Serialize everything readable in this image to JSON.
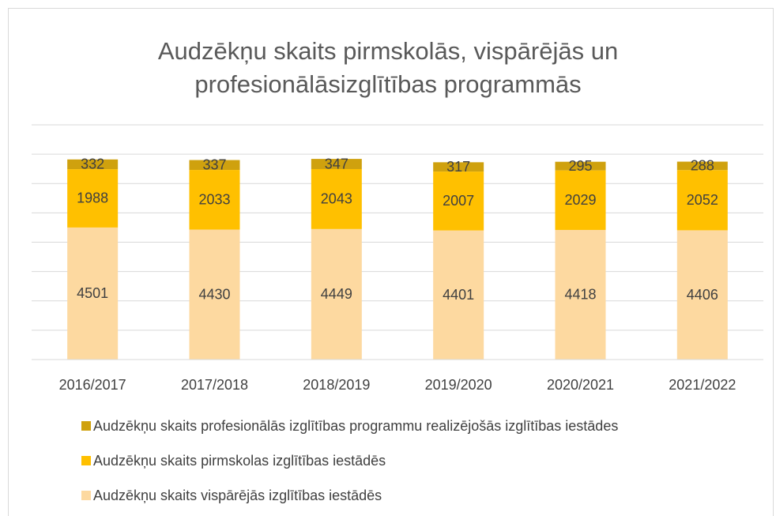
{
  "chart_data": {
    "type": "stacked_bar",
    "title": "Audzēkņu skaits pirmskolās, vispārējās un profesionālāsizglītības programmās",
    "categories": [
      "2016/2017",
      "2017/2018",
      "2018/2019",
      "2019/2020",
      "2020/2021",
      "2021/2022"
    ],
    "series": [
      {
        "name": "Audzēkņu skaits vispārējās izglītības iestādēs",
        "color": "#fdd9a0",
        "values": [
          4501,
          4430,
          4449,
          4401,
          4418,
          4406
        ]
      },
      {
        "name": "Audzēkņu skaits pirmskolas izglītības iestādēs",
        "color": "#ffc000",
        "values": [
          1988,
          2033,
          2043,
          2007,
          2029,
          2052
        ]
      },
      {
        "name": "Audzēkņu skaits profesionālās izglītības programmu realizējošās izglītības iestādes",
        "color": "#cfa10e",
        "values": [
          332,
          337,
          347,
          317,
          295,
          288
        ]
      }
    ],
    "ylim": [
      0,
      8000
    ],
    "yticks": [
      0,
      1000,
      2000,
      3000,
      4000,
      5000,
      6000,
      7000,
      8000
    ],
    "grid": true
  }
}
